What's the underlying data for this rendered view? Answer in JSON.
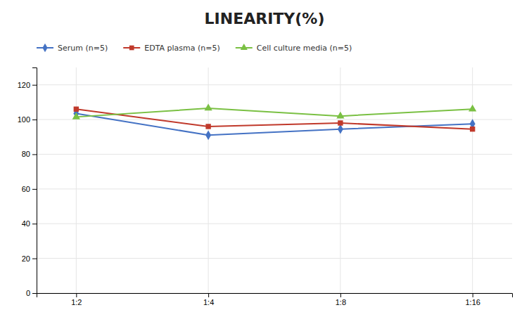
{
  "chart_data": {
    "type": "line",
    "title": "LINEARITY(%)",
    "categories": [
      "1:2",
      "1:4",
      "1:8",
      "1:16"
    ],
    "series": [
      {
        "name": "Serum (n=5)",
        "color": "#4472C4",
        "marker": "diamond",
        "values": [
          103.5,
          91.0,
          94.5,
          97.5
        ]
      },
      {
        "name": "EDTA plasma (n=5)",
        "color": "#C0392B",
        "marker": "square",
        "values": [
          106.0,
          96.0,
          98.0,
          94.5
        ]
      },
      {
        "name": "Cell culture media (n=5)",
        "color": "#7AC043",
        "marker": "triangle",
        "values": [
          101.5,
          106.5,
          102.0,
          106.0
        ]
      }
    ],
    "ylim": [
      0,
      130
    ],
    "yticks": [
      0,
      20,
      40,
      60,
      80,
      100,
      120
    ],
    "grid": true,
    "legend": "top-left"
  }
}
